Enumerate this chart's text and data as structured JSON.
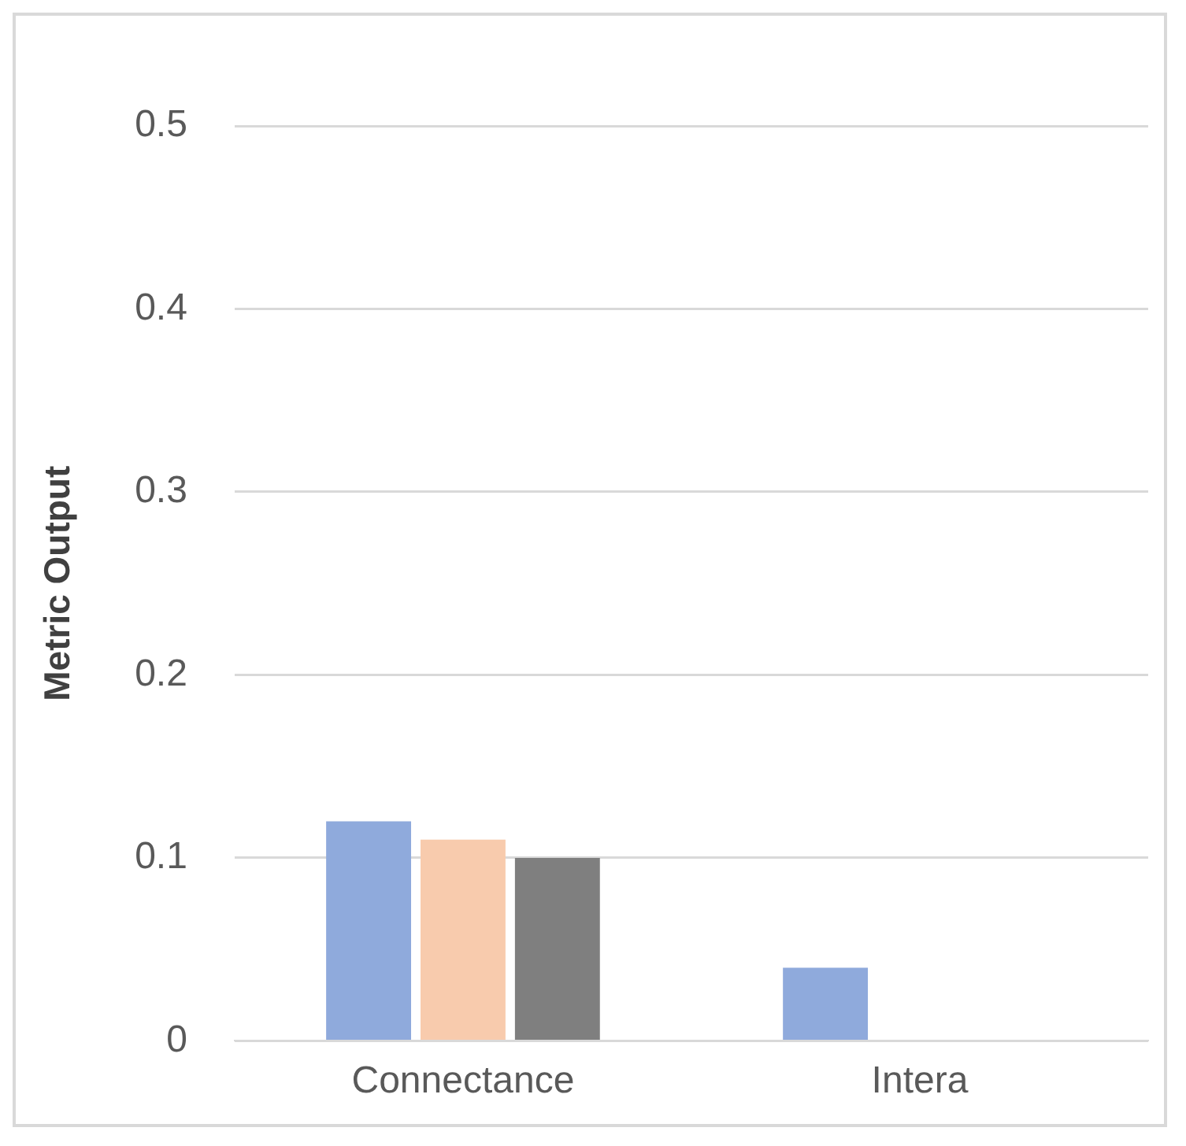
{
  "chart_data": {
    "type": "bar",
    "ylabel": "Metric Output",
    "categories": [
      "Connectance",
      "Intera"
    ],
    "series": [
      {
        "color": "#8faadc",
        "values": [
          0.12,
          0.04
        ]
      },
      {
        "color": "#f8cbad",
        "values": [
          0.11,
          null
        ]
      },
      {
        "color": "#7f7f7f",
        "values": [
          0.1,
          null
        ]
      }
    ],
    "ylim": [
      0,
      0.5
    ],
    "yticks": [
      0,
      0.1,
      0.2,
      0.3,
      0.4,
      0.5
    ],
    "grid": "y",
    "legend": false
  }
}
